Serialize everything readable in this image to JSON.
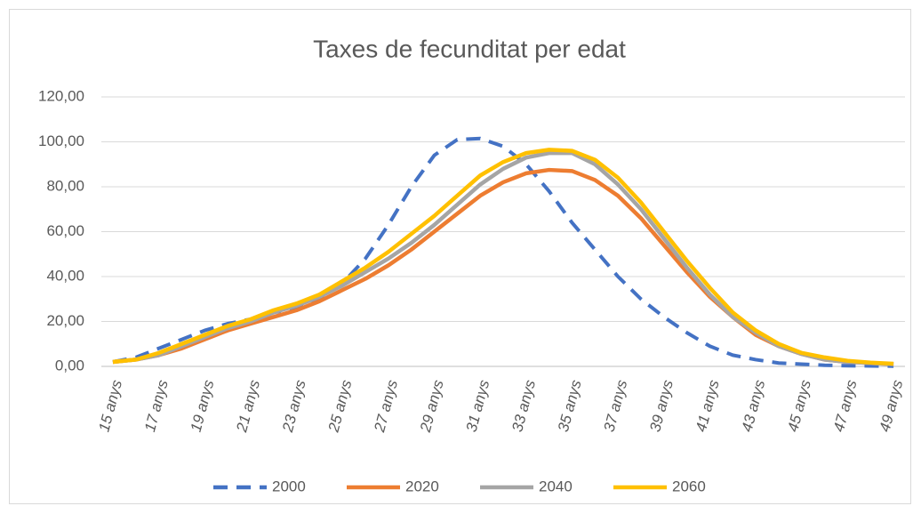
{
  "chart_data": {
    "type": "line",
    "title": "Taxes de fecunditat per edat",
    "categories": [
      "15 anys",
      null,
      "17 anys",
      null,
      "19 anys",
      null,
      "21 anys",
      null,
      "23 anys",
      null,
      "25 anys",
      null,
      "27 anys",
      null,
      "29 anys",
      null,
      "31 anys",
      null,
      "33 anys",
      null,
      "35 anys",
      null,
      "37 anys",
      null,
      "39 anys",
      null,
      "41 anys",
      null,
      "43 anys",
      null,
      "45 anys",
      null,
      "47 anys",
      null,
      "49 anys"
    ],
    "series": [
      {
        "name": "2000",
        "color": "#4472c4",
        "line_style": "dashed",
        "values": [
          2,
          4,
          8,
          12,
          16,
          19,
          21,
          24,
          26,
          30,
          37,
          48,
          63,
          80,
          94,
          101,
          101.5,
          98,
          90,
          78,
          64,
          52,
          40,
          30,
          22,
          15,
          9,
          5,
          3,
          1.5,
          1,
          0.5,
          0.3,
          0.2,
          0.1
        ]
      },
      {
        "name": "2020",
        "color": "#ed7d31",
        "line_style": "solid",
        "values": [
          2,
          3,
          5,
          8,
          12,
          16,
          19,
          22,
          25,
          29,
          34,
          39,
          45,
          52,
          60,
          68,
          76,
          82,
          86,
          87.5,
          87,
          83,
          76,
          66,
          54,
          42,
          31,
          22,
          14,
          9,
          5.5,
          3,
          2,
          1.5,
          1
        ]
      },
      {
        "name": "2040",
        "color": "#a5a5a5",
        "line_style": "solid",
        "values": [
          2,
          3,
          5,
          9,
          13,
          17,
          20,
          24,
          27,
          31,
          36,
          42,
          48,
          55,
          63,
          72,
          81,
          88,
          93,
          95,
          95,
          90,
          81,
          70,
          57,
          44,
          32,
          22,
          15,
          9,
          5.5,
          3,
          2,
          1.5,
          1
        ]
      },
      {
        "name": "2060",
        "color": "#ffc000",
        "line_style": "solid",
        "values": [
          2,
          3,
          6,
          10,
          14,
          18,
          21,
          25,
          28,
          32,
          38,
          44,
          51,
          59,
          67,
          76,
          85,
          91,
          95,
          96.5,
          96,
          92,
          84,
          73,
          60,
          47,
          35,
          24,
          16,
          10,
          6,
          4,
          2.5,
          1.7,
          1.2
        ]
      }
    ],
    "ylim": [
      0,
      120
    ],
    "yticks": [
      {
        "value": 0,
        "label": "0,00"
      },
      {
        "value": 20,
        "label": "20,00"
      },
      {
        "value": 40,
        "label": "40,00"
      },
      {
        "value": 60,
        "label": "60,00"
      },
      {
        "value": 80,
        "label": "80,00"
      },
      {
        "value": 100,
        "label": "100,00"
      },
      {
        "value": 120,
        "label": "120,00"
      }
    ],
    "grid": true,
    "legend": "bottom"
  }
}
